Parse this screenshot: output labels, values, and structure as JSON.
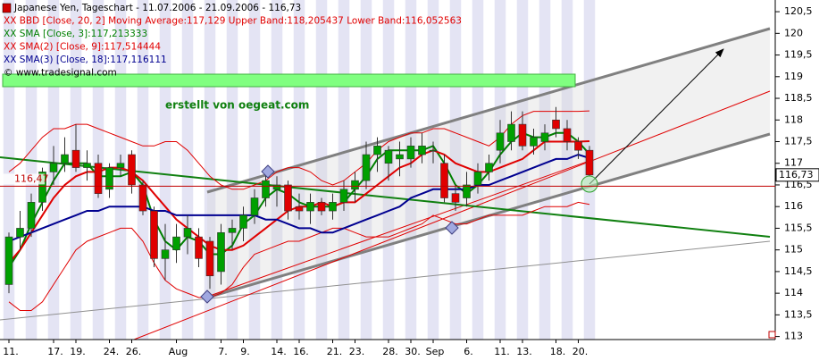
{
  "chart_data": {
    "type": "candlestick",
    "title": "Japanese Yen, Tageschart - 11.07.2006 - 21.09.2006 - 116,73",
    "copyright": "© www.tradesignal.com",
    "annotation": "erstellt von oegeat.com",
    "categories": [
      "11.",
      null,
      null,
      null,
      "17.",
      null,
      "19.",
      null,
      null,
      "24.",
      null,
      "26.",
      null,
      null,
      null,
      "Aug",
      null,
      null,
      null,
      "7.",
      null,
      "9.",
      null,
      null,
      "14.",
      null,
      "16.",
      null,
      null,
      "21.",
      null,
      "23.",
      null,
      null,
      "28.",
      null,
      "30.",
      null,
      "Sep",
      null,
      null,
      "6.",
      null,
      null,
      "11.",
      null,
      "13.",
      null,
      null,
      "18.",
      null,
      "20.",
      null
    ],
    "open": [
      114.2,
      115.3,
      115.5,
      116.1,
      116.8,
      117.0,
      117.3,
      116.9,
      117.0,
      116.4,
      116.9,
      117.2,
      116.5,
      115.9,
      114.8,
      115.0,
      115.3,
      115.3,
      115.2,
      114.5,
      115.4,
      115.5,
      115.8,
      116.2,
      116.4,
      116.5,
      116.0,
      115.9,
      116.1,
      115.9,
      116.1,
      116.4,
      116.6,
      117.2,
      117.0,
      117.1,
      117.1,
      117.2,
      117.3,
      117.0,
      116.3,
      116.2,
      116.5,
      116.8,
      117.3,
      117.5,
      117.9,
      117.4,
      117.5,
      118.0,
      117.8,
      117.5,
      117.3
    ],
    "high": [
      115.4,
      115.9,
      116.3,
      116.9,
      117.4,
      117.6,
      117.9,
      117.3,
      117.2,
      117.0,
      117.2,
      117.3,
      116.6,
      116.0,
      115.6,
      115.6,
      115.8,
      115.5,
      115.3,
      115.6,
      115.7,
      116.0,
      116.4,
      116.9,
      116.7,
      116.6,
      116.3,
      116.3,
      116.2,
      116.3,
      116.6,
      116.8,
      117.5,
      117.6,
      117.4,
      117.5,
      117.6,
      117.7,
      117.5,
      117.2,
      116.5,
      116.8,
      117.0,
      117.2,
      118.0,
      118.2,
      118.2,
      117.8,
      117.9,
      118.3,
      118.0,
      117.6,
      117.4
    ],
    "low": [
      114.0,
      115.0,
      115.3,
      115.9,
      116.5,
      116.8,
      116.8,
      116.6,
      116.2,
      116.2,
      116.7,
      116.3,
      115.8,
      114.6,
      114.3,
      114.7,
      114.9,
      114.6,
      114.1,
      114.2,
      115.0,
      115.2,
      115.6,
      116.0,
      116.0,
      115.7,
      115.7,
      115.6,
      115.8,
      115.7,
      115.9,
      116.1,
      116.4,
      116.8,
      116.6,
      116.7,
      116.9,
      117.0,
      117.0,
      116.1,
      115.9,
      116.0,
      116.3,
      116.6,
      117.0,
      117.3,
      117.3,
      117.2,
      117.3,
      117.6,
      117.3,
      117.1,
      116.7
    ],
    "close": [
      115.3,
      115.5,
      116.1,
      116.8,
      117.0,
      117.2,
      116.9,
      117.0,
      116.3,
      116.9,
      117.0,
      116.5,
      115.9,
      114.8,
      115.0,
      115.3,
      115.5,
      114.8,
      114.4,
      115.4,
      115.5,
      115.8,
      116.2,
      116.6,
      116.5,
      115.9,
      115.9,
      116.1,
      115.9,
      116.1,
      116.4,
      116.6,
      117.2,
      117.4,
      117.3,
      117.2,
      117.4,
      117.4,
      117.3,
      116.2,
      116.1,
      116.5,
      116.8,
      117.0,
      117.7,
      117.9,
      117.4,
      117.6,
      117.7,
      117.8,
      117.5,
      117.3,
      116.73
    ],
    "up_color": "#00a000",
    "down_color": "#e00000",
    "bands": {
      "name": "XX BBD [Close, 20, 2] Moving Average:117,129 Upper Band:118,205437 Lower Band:116,052563",
      "color": "#e00000",
      "upper": [
        116.8,
        117.0,
        117.3,
        117.6,
        117.8,
        117.8,
        117.9,
        117.9,
        117.8,
        117.7,
        117.6,
        117.5,
        117.4,
        117.4,
        117.5,
        117.5,
        117.3,
        117.0,
        116.7,
        116.5,
        116.4,
        116.4,
        116.5,
        116.6,
        116.8,
        116.9,
        116.9,
        116.8,
        116.6,
        116.5,
        116.6,
        116.8,
        117.0,
        117.3,
        117.5,
        117.6,
        117.7,
        117.7,
        117.8,
        117.8,
        117.7,
        117.6,
        117.5,
        117.4,
        117.6,
        117.9,
        118.1,
        118.2,
        118.2,
        118.2,
        118.2,
        118.2,
        118.21
      ],
      "lower": [
        113.8,
        113.6,
        113.6,
        113.8,
        114.2,
        114.6,
        115.0,
        115.2,
        115.3,
        115.4,
        115.5,
        115.5,
        115.2,
        114.7,
        114.3,
        114.1,
        114.0,
        113.9,
        113.9,
        114.0,
        114.2,
        114.6,
        114.9,
        115.0,
        115.1,
        115.2,
        115.2,
        115.3,
        115.4,
        115.5,
        115.5,
        115.4,
        115.3,
        115.3,
        115.3,
        115.4,
        115.5,
        115.6,
        115.8,
        115.7,
        115.6,
        115.6,
        115.7,
        115.8,
        115.8,
        115.8,
        115.8,
        115.9,
        116.0,
        116.0,
        116.0,
        116.1,
        116.05
      ]
    },
    "series": [
      {
        "name": "XX SMA [Close, 3]:117,213333",
        "color": "#008000",
        "values": [
          114.6,
          115.0,
          115.6,
          116.1,
          116.6,
          117.0,
          117.0,
          117.0,
          116.7,
          116.7,
          116.7,
          116.8,
          116.5,
          115.7,
          115.2,
          115.0,
          115.3,
          115.2,
          114.9,
          114.9,
          115.1,
          115.6,
          115.8,
          116.2,
          116.4,
          116.3,
          116.1,
          116.0,
          116.0,
          116.0,
          116.1,
          116.4,
          116.7,
          117.1,
          117.3,
          117.3,
          117.3,
          117.3,
          117.4,
          117.0,
          116.5,
          116.3,
          116.5,
          116.8,
          117.2,
          117.5,
          117.7,
          117.6,
          117.6,
          117.7,
          117.7,
          117.5,
          117.21
        ]
      },
      {
        "name": "XX SMA(2) [Close, 9]:117,514444",
        "color": "#e00000",
        "values": [
          114.7,
          115.0,
          115.4,
          115.8,
          116.2,
          116.5,
          116.7,
          116.8,
          116.8,
          116.9,
          116.9,
          116.8,
          116.6,
          116.3,
          116.0,
          115.7,
          115.5,
          115.3,
          115.1,
          115.0,
          115.0,
          115.1,
          115.3,
          115.5,
          115.7,
          115.9,
          116.0,
          116.0,
          116.1,
          116.0,
          116.1,
          116.1,
          116.3,
          116.5,
          116.7,
          116.9,
          117.0,
          117.2,
          117.3,
          117.2,
          117.0,
          116.9,
          116.8,
          116.8,
          116.9,
          117.0,
          117.1,
          117.3,
          117.5,
          117.5,
          117.5,
          117.5,
          117.51
        ]
      },
      {
        "name": "XX SMA(3) [Close, 18]:117,116111",
        "color": "#000090",
        "values": [
          115.2,
          115.3,
          115.4,
          115.5,
          115.6,
          115.7,
          115.8,
          115.9,
          115.9,
          116.0,
          116.0,
          116.0,
          116.0,
          115.9,
          115.9,
          115.8,
          115.8,
          115.8,
          115.8,
          115.8,
          115.8,
          115.8,
          115.8,
          115.7,
          115.7,
          115.6,
          115.5,
          115.5,
          115.4,
          115.4,
          115.5,
          115.6,
          115.7,
          115.8,
          115.9,
          116.0,
          116.2,
          116.3,
          116.4,
          116.4,
          116.4,
          116.4,
          116.5,
          116.5,
          116.6,
          116.7,
          116.8,
          116.9,
          117.0,
          117.1,
          117.1,
          117.2,
          117.12
        ]
      }
    ],
    "hline": {
      "value": 116.47,
      "label": "116,47",
      "color": "#c00000"
    },
    "last_price": {
      "value": 116.73,
      "label": "116,73"
    },
    "ylim": [
      112.93,
      120.77
    ],
    "yticks": [
      {
        "value": 120.5,
        "label": "120,5"
      },
      120,
      {
        "value": 119.5,
        "label": "119,5"
      },
      119,
      {
        "value": 118.5,
        "label": "118,5"
      },
      118,
      {
        "value": 117.5,
        "label": "117,5"
      },
      117,
      {
        "value": 116.5,
        "label": "116,5"
      },
      116,
      {
        "value": 115.5,
        "label": "115,5"
      },
      115,
      {
        "value": 114.5,
        "label": "114,5"
      },
      114,
      {
        "value": 113.5,
        "label": "113,5"
      },
      113
    ]
  }
}
